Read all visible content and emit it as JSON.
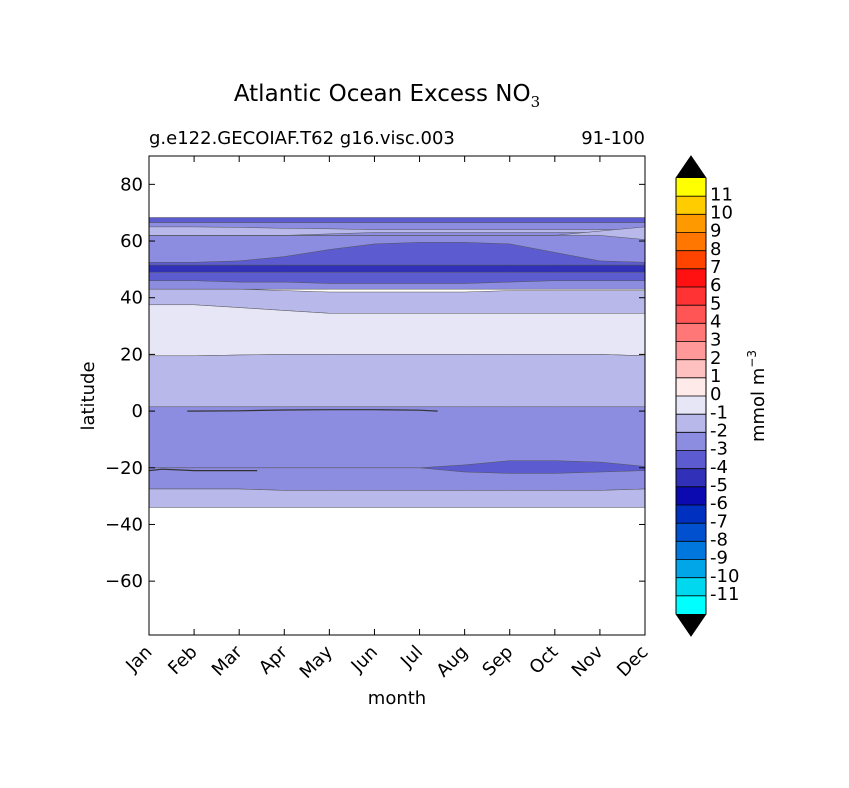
{
  "chart_data": {
    "type": "filled-contour",
    "title": "Atlantic Ocean Excess NO",
    "title_subscript": "3",
    "subtitle_left": "g.e122.GECOIAF.T62 g16.visc.003",
    "subtitle_right": "91-100",
    "xlabel": "month",
    "ylabel": "latitude",
    "x_categories": [
      "Jan",
      "Feb",
      "Mar",
      "Apr",
      "May",
      "Jun",
      "Jul",
      "Aug",
      "Sep",
      "Oct",
      "Nov",
      "Dec"
    ],
    "xlim": [
      0,
      11
    ],
    "ylim": [
      -79,
      90
    ],
    "y_ticks": [
      80,
      60,
      40,
      20,
      0,
      -20,
      -40,
      -60
    ],
    "y_tick_labels": [
      "80",
      "60",
      "40",
      "20",
      "0",
      "−20",
      "−40",
      "−60"
    ],
    "colorbar": {
      "label": "mmol m",
      "label_superscript": "−3",
      "levels": [
        "11",
        "10",
        "9",
        "8",
        "7",
        "6",
        "5",
        "4",
        "3",
        "2",
        "1",
        "0",
        "-1",
        "-2",
        "-3",
        "-4",
        "-5",
        "-6",
        "-7",
        "-8",
        "-9",
        "-10",
        "-11"
      ],
      "colors": [
        "#ffff00",
        "#ffcc00",
        "#ff9900",
        "#ff7700",
        "#ff4400",
        "#ff1111",
        "#ff3333",
        "#ff5555",
        "#ff7777",
        "#ff9999",
        "#ffc0c0",
        "#ffeaea",
        "#e6e6f7",
        "#b8b8ea",
        "#8c8ce0",
        "#5c5cd0",
        "#3030b8",
        "#0a0ab0",
        "#0030c0",
        "#0050d0",
        "#0077dd",
        "#00a6e8",
        "#00d8f0",
        "#00ffff"
      ],
      "extend_colors": [
        "#000000",
        "#000000"
      ]
    },
    "contour_bands": [
      {
        "name": "band-lat-68-67",
        "color": "#5c5cd0",
        "top": [
          68.3,
          68.3,
          68.3,
          68.3,
          68.3,
          68.3,
          68.3,
          68.3,
          68.3,
          68.3,
          68.3,
          68.3
        ],
        "bottom": [
          66.5,
          66.5,
          66.5,
          66.5,
          66.5,
          66.5,
          66.5,
          66.5,
          66.5,
          66.5,
          66.5,
          66.5
        ]
      },
      {
        "name": "band-lat-67-43",
        "color": "#8c8ce0",
        "top": [
          66.5,
          66.5,
          66.5,
          66.5,
          66.5,
          66.5,
          66.5,
          66.5,
          66.5,
          66.5,
          66.5,
          66.5
        ],
        "bottom": [
          43,
          43,
          43,
          43,
          43,
          43,
          43,
          43,
          43,
          43,
          43,
          43
        ]
      },
      {
        "name": "band-lat-65-62-west",
        "color": "#b8b8ea",
        "top": [
          65,
          65,
          64.8,
          64.5,
          64.3,
          64,
          64,
          64,
          64,
          64,
          64,
          64
        ],
        "bottom": [
          62,
          62,
          62,
          62,
          62.5,
          63,
          63,
          63,
          63,
          63,
          63,
          63
        ]
      },
      {
        "name": "band-lat-65-62-east",
        "color": "#b8b8ea",
        "top": [
          62,
          62,
          62,
          62,
          62,
          62,
          62,
          62,
          62,
          62,
          63.5,
          65
        ],
        "bottom": [
          62,
          62,
          62,
          62,
          62,
          62,
          62,
          62,
          62,
          62,
          62,
          60.5
        ]
      },
      {
        "name": "band-lat-60-52-mid",
        "color": "#5c5cd0",
        "top": [
          52.5,
          52.5,
          53,
          54.5,
          57,
          59,
          59.5,
          59.5,
          59,
          56,
          53,
          52.5
        ],
        "bottom": [
          51.5,
          51.5,
          51.5,
          51.5,
          51.5,
          51.5,
          51.5,
          51.5,
          51.5,
          51.5,
          51.5,
          51.5
        ]
      },
      {
        "name": "band-lat-51-49",
        "color": "#3030b8",
        "top": [
          51.5,
          51.5,
          51.5,
          51.5,
          51.5,
          51.5,
          51.5,
          51.5,
          51.5,
          51.5,
          51.5,
          51.5
        ],
        "bottom": [
          49,
          49,
          49,
          49,
          49,
          49,
          49,
          49,
          49,
          49,
          49,
          49
        ]
      },
      {
        "name": "band-lat-49-46",
        "color": "#5c5cd0",
        "top": [
          49,
          49,
          49,
          49,
          49,
          49,
          49,
          49,
          49,
          49,
          49,
          49
        ],
        "bottom": [
          46,
          46,
          45.5,
          45.5,
          45,
          45,
          45,
          45,
          45.5,
          46,
          46,
          46
        ]
      },
      {
        "name": "band-lat-43-37",
        "color": "#b8b8ea",
        "top": [
          43,
          43,
          43,
          42.5,
          42,
          42,
          42,
          42,
          42.5,
          42.5,
          42.5,
          42.5
        ],
        "bottom": [
          37.5,
          37.5,
          36.5,
          35.5,
          34.5,
          34.5,
          34.5,
          34.5,
          34.5,
          34.5,
          34.5,
          34.5
        ]
      },
      {
        "name": "band-lat-37-20",
        "color": "#e6e6f7",
        "top": [
          37.5,
          37.5,
          36.5,
          35.5,
          34.5,
          34.5,
          34.5,
          34.5,
          34.5,
          34.5,
          34.5,
          34.5
        ],
        "bottom": [
          19.5,
          19.5,
          19.8,
          20,
          20,
          20,
          20,
          20,
          20,
          20,
          20,
          19.5
        ]
      },
      {
        "name": "band-lat-20-2",
        "color": "#b8b8ea",
        "top": [
          19.5,
          19.5,
          19.8,
          20,
          20,
          20,
          20,
          20,
          20,
          20,
          20,
          19.5
        ],
        "bottom": [
          1.5,
          1.5,
          1.5,
          1.5,
          1.5,
          1.5,
          1.5,
          1.5,
          1.5,
          1.5,
          1.5,
          1.5
        ]
      },
      {
        "name": "band-lat-2-minus28",
        "color": "#8c8ce0",
        "top": [
          1.5,
          1.5,
          1.5,
          1.5,
          1.5,
          1.5,
          1.5,
          1.5,
          1.5,
          1.5,
          1.5,
          1.5
        ],
        "bottom": [
          -27.5,
          -27.5,
          -27.5,
          -28,
          -28,
          -28,
          -28,
          -28,
          -28,
          -28,
          -28,
          -27.5
        ]
      },
      {
        "name": "band-lat-minus20-southeast",
        "color": "#5c5cd0",
        "top": [
          -20,
          -20,
          -20,
          -20,
          -20,
          -20,
          -20,
          -19,
          -17.5,
          -17.5,
          -18,
          -19.5
        ],
        "bottom": [
          -20,
          -20,
          -20,
          -20,
          -20,
          -20,
          -20,
          -21.5,
          -22,
          -22,
          -21.5,
          -21
        ]
      },
      {
        "name": "band-lat-minus28-minus34",
        "color": "#b8b8ea",
        "top": [
          -27.5,
          -27.5,
          -27.5,
          -28,
          -28,
          -28,
          -28,
          -28,
          -28,
          -28,
          -28,
          -27.5
        ],
        "bottom": [
          -34,
          -34,
          -34,
          -34,
          -34,
          -34,
          -34,
          -34,
          -34,
          -34,
          -34,
          -34
        ]
      }
    ],
    "contour_lines": [
      {
        "name": "contour-line-equator",
        "x": [
          0.85,
          2,
          3,
          4,
          5,
          6,
          6.4
        ],
        "y": [
          0,
          0.1,
          0.4,
          0.5,
          0.5,
          0.3,
          0
        ]
      },
      {
        "name": "contour-line-minus21",
        "x": [
          0,
          0.3,
          1,
          2,
          2.4
        ],
        "y": [
          -21,
          -20.5,
          -21,
          -21,
          -21
        ]
      }
    ]
  }
}
